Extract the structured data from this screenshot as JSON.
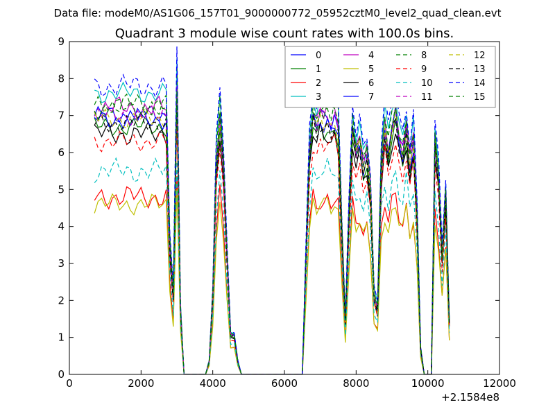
{
  "chart_data": {
    "type": "line",
    "suptitle": "Data file: modeM0/AS1G06_157T01_9000000772_05952cztM0_level2_quad_clean.evt",
    "title": "Quadrant 3 module wise count rates with 100.0s bins.",
    "xlabel": "",
    "ylabel": "",
    "x_offset_label": "+2.1584e8",
    "xlim": [
      0,
      12000
    ],
    "ylim": [
      0,
      9
    ],
    "xticks": [
      "0",
      "2000",
      "4000",
      "6000",
      "8000",
      "10000",
      "12000"
    ],
    "yticks": [
      "0",
      "1",
      "2",
      "3",
      "4",
      "5",
      "6",
      "7",
      "8",
      "9"
    ],
    "legend_position": "top-right",
    "x": [
      700,
      800,
      900,
      1000,
      1100,
      1200,
      1300,
      1400,
      1500,
      1600,
      1700,
      1800,
      1900,
      2000,
      2100,
      2200,
      2300,
      2400,
      2500,
      2600,
      2700,
      2800,
      2900,
      3000,
      3100,
      3200,
      3300,
      3400,
      3500,
      3600,
      3700,
      3800,
      3900,
      4000,
      4100,
      4200,
      4300,
      4400,
      4500,
      4600,
      4700,
      4800,
      4900,
      5000,
      5100,
      5200,
      5300,
      5400,
      5500,
      5600,
      5700,
      5800,
      5900,
      6000,
      6100,
      6200,
      6300,
      6400,
      6500,
      6600,
      6700,
      6800,
      6900,
      7000,
      7100,
      7200,
      7300,
      7400,
      7500,
      7600,
      7700,
      7800,
      7900,
      8000,
      8100,
      8200,
      8300,
      8400,
      8500,
      8600,
      8700,
      8800,
      8900,
      9000,
      9100,
      9200,
      9300,
      9400,
      9500,
      9600,
      9700,
      9800,
      9900,
      10000,
      10100,
      10200,
      10300,
      10400,
      10500,
      10600
    ],
    "profile": [
      1,
      1,
      1,
      1,
      1,
      1,
      1,
      1,
      1,
      1,
      1,
      1,
      1,
      1,
      1,
      1,
      1,
      1,
      1,
      1,
      1,
      0.5,
      0.3,
      1.1,
      0.25,
      0,
      0,
      0,
      0,
      0,
      0,
      0,
      0.05,
      0.3,
      0.8,
      1.0,
      0.8,
      0.45,
      0.15,
      0.15,
      0.05,
      0,
      0,
      0,
      0,
      0,
      0,
      0,
      0,
      0,
      0,
      0,
      0,
      0,
      0,
      0,
      0,
      0,
      0,
      0.45,
      0.85,
      1,
      0.95,
      1,
      0.98,
      1,
      0.97,
      1,
      0.95,
      0.55,
      0.2,
      0.6,
      0.95,
      0.85,
      0.9,
      0.8,
      0.85,
      0.7,
      0.3,
      0.25,
      0.8,
      0.95,
      0.85,
      0.95,
      1,
      0.9,
      0.85,
      0.95,
      0.8,
      0.9,
      0.6,
      0.1,
      0,
      0,
      0,
      0.9,
      0.75,
      0.45,
      0.7,
      0.2
    ],
    "series": [
      {
        "name": "0",
        "color": "#0000ff",
        "style": "solid",
        "level": 7.0,
        "jitter": 0.3
      },
      {
        "name": "1",
        "color": "#008000",
        "style": "solid",
        "level": 6.7,
        "jitter": 0.3
      },
      {
        "name": "2",
        "color": "#ff0000",
        "style": "solid",
        "level": 4.8,
        "jitter": 0.35
      },
      {
        "name": "3",
        "color": "#00bfbf",
        "style": "solid",
        "level": 7.6,
        "jitter": 0.3
      },
      {
        "name": "4",
        "color": "#bf00bf",
        "style": "solid",
        "level": 7.2,
        "jitter": 0.35
      },
      {
        "name": "5",
        "color": "#bfbf00",
        "style": "solid",
        "level": 4.6,
        "jitter": 0.3
      },
      {
        "name": "6",
        "color": "#000000",
        "style": "solid",
        "level": 6.5,
        "jitter": 0.35
      },
      {
        "name": "7",
        "color": "#0000ff",
        "style": "solid",
        "level": 6.9,
        "jitter": 0.3
      },
      {
        "name": "8",
        "color": "#008000",
        "style": "dashed",
        "level": 7.3,
        "jitter": 0.35
      },
      {
        "name": "9",
        "color": "#ff0000",
        "style": "dashed",
        "level": 6.3,
        "jitter": 0.3
      },
      {
        "name": "10",
        "color": "#00bfbf",
        "style": "dashed",
        "level": 5.5,
        "jitter": 0.35
      },
      {
        "name": "11",
        "color": "#bf00bf",
        "style": "dashed",
        "level": 7.0,
        "jitter": 0.3
      },
      {
        "name": "12",
        "color": "#bfbf00",
        "style": "dashed",
        "level": 6.9,
        "jitter": 0.3
      },
      {
        "name": "13",
        "color": "#000000",
        "style": "dashed",
        "level": 6.8,
        "jitter": 0.3
      },
      {
        "name": "14",
        "color": "#0000ff",
        "style": "dashed",
        "level": 7.8,
        "jitter": 0.35
      },
      {
        "name": "15",
        "color": "#008000",
        "style": "dashed",
        "level": 7.2,
        "jitter": 0.3
      }
    ]
  }
}
